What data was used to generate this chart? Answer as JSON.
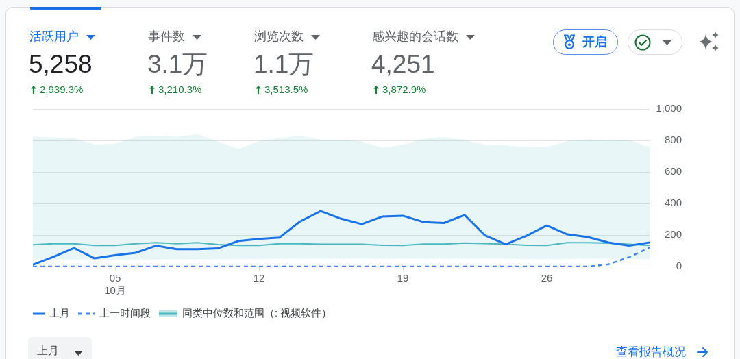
{
  "chart_data": [
    {
      "type": "other",
      "annotations": [
        "活跃用户",
        "5,258",
        "2,939.3%",
        "事件数",
        "3.1万",
        "3,210.3%",
        "浏览次数",
        "1.1万",
        "3,513.5%",
        "感兴趣的会话数",
        "4,251",
        "3,872.9%",
        "开启"
      ]
    },
    {
      "type": "line",
      "x": [
        "--10-01",
        "--10-02",
        "--10-03",
        "--10-04",
        "--10-05",
        "--10-06",
        "--10-07",
        "--10-08",
        "--10-09",
        "--10-10",
        "--10-11",
        "--10-12",
        "--10-13",
        "--10-14",
        "--10-15",
        "--10-16",
        "--10-17",
        "--10-18",
        "--10-19",
        "--10-20",
        "--10-21",
        "--10-22",
        "--10-23",
        "--10-24",
        "--10-25",
        "--10-26",
        "--10-27",
        "--10-28",
        "--10-29",
        "--10-30",
        "--10-31"
      ],
      "xlim": [
        "--10-01",
        "--10-31"
      ],
      "xticks": [
        {
          "value": "--10-05",
          "label": "05\n10月"
        },
        {
          "value": "--10-12",
          "label": "12"
        },
        {
          "value": "--10-19",
          "label": "19"
        },
        {
          "value": "--10-26",
          "label": "26"
        }
      ],
      "ylim": [
        0,
        1000
      ],
      "yticks": [
        0,
        200,
        400,
        600,
        800,
        {
          "value": 1000,
          "label": "1,000"
        }
      ],
      "grid": "y",
      "legend": "bottom left",
      "marker": "none",
      "series": [
        {
          "name": "上月",
          "color": "#1a73e8",
          "values": [
            11,
            61,
            117,
            52,
            72,
            87,
            132,
            110,
            110,
            115,
            162,
            175,
            184,
            286,
            352,
            303,
            269,
            317,
            322,
            282,
            276,
            327,
            197,
            141,
            194,
            260,
            204,
            187,
            152,
            132,
            152
          ]
        },
        {
          "name": "上一时间段",
          "color": "#4285f4",
          "line_style": "dashed",
          "values": [
            0,
            0,
            0,
            0,
            0,
            0,
            0,
            0,
            0,
            0,
            0,
            0,
            0,
            0,
            0,
            0,
            0,
            0,
            0,
            0,
            0,
            0,
            0,
            0,
            0,
            0,
            0,
            0,
            14,
            59,
            120
          ]
        },
        {
          "name": "同类中位数和范围（: 视频软件）",
          "color": "#4bb6c2",
          "values": [
            138,
            145,
            145,
            134,
            134,
            145,
            151,
            145,
            151,
            139,
            134,
            134,
            145,
            145,
            141,
            141,
            141,
            135,
            134,
            142,
            142,
            149,
            146,
            141,
            135,
            134,
            151,
            151,
            148,
            141,
            134
          ],
          "lower": [
            46,
            46,
            45,
            43,
            42,
            44,
            46,
            47,
            46,
            47,
            48,
            48,
            49,
            49,
            49,
            49,
            49,
            49,
            49,
            49,
            49,
            49,
            49,
            49,
            48,
            48,
            48,
            49,
            49,
            49,
            47
          ],
          "upper": [
            825,
            819,
            814,
            774,
            779,
            824,
            828,
            824,
            839,
            793,
            746,
            797,
            814,
            831,
            804,
            804,
            793,
            753,
            772,
            810,
            824,
            803,
            773,
            769,
            758,
            758,
            797,
            807,
            800,
            803,
            758
          ]
        }
      ],
      "annotations": [
        "上月",
        "查看报告概况"
      ]
    }
  ]
}
